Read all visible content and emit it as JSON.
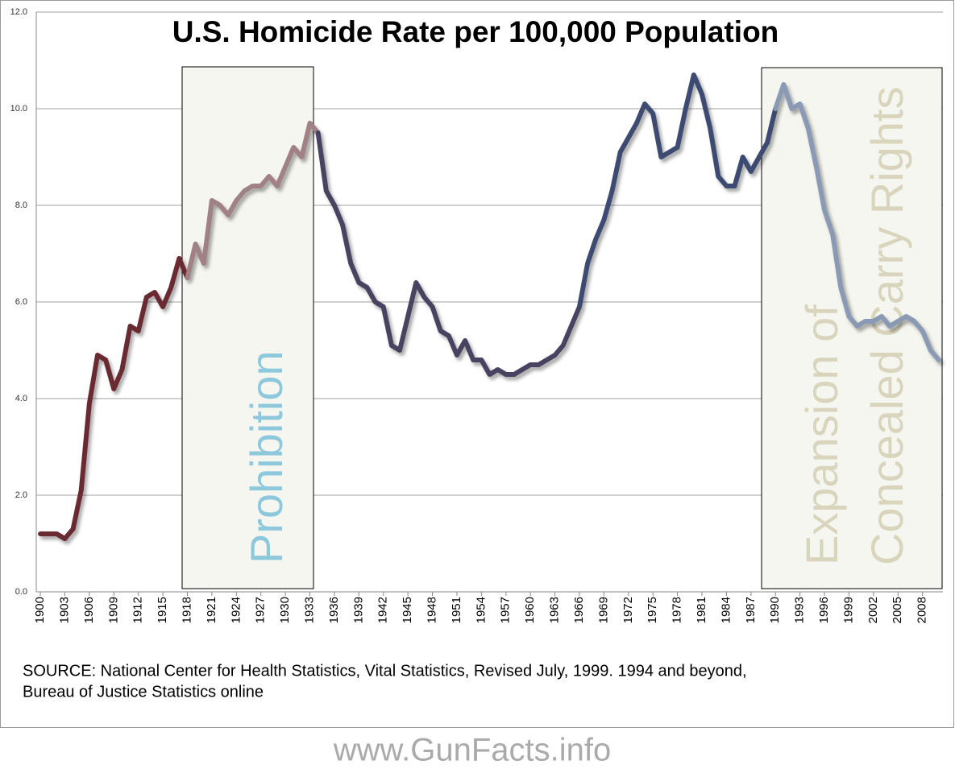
{
  "chart_data": {
    "type": "line",
    "title": "U.S. Homicide Rate per 100,000 Population",
    "source": [
      "SOURCE: National Center for Health Statistics, Vital Statistics, Revised  July, 1999. 1994 and beyond,",
      "Bureau of Justice Statistics online"
    ],
    "footer": "www.GunFacts.info",
    "annotations": [
      {
        "lines": [
          "Prohibition"
        ],
        "color": "#8ec8dc"
      },
      {
        "lines": [
          "Expansion of",
          "Concealed Carry Rights"
        ],
        "color": "#d9d5bd"
      }
    ],
    "xlim": [
      1899.5,
      2010.5
    ],
    "xticks": [
      1900,
      1903,
      1906,
      1909,
      1912,
      1915,
      1918,
      1921,
      1924,
      1927,
      1930,
      1933,
      1936,
      1939,
      1942,
      1945,
      1948,
      1951,
      1954,
      1957,
      1960,
      1963,
      1966,
      1969,
      1972,
      1975,
      1978,
      1981,
      1984,
      1987,
      1990,
      1993,
      1996,
      1999,
      2002,
      2005,
      2008
    ],
    "ylim": [
      0,
      12
    ],
    "yticks": [
      {
        "value": 0,
        "label": "0.0"
      },
      {
        "value": 2,
        "label": "2.0"
      },
      {
        "value": 4,
        "label": "4.0"
      },
      {
        "value": 6,
        "label": "6.0"
      },
      {
        "value": 8,
        "label": "8.0"
      },
      {
        "value": 10,
        "label": "10.0"
      },
      {
        "value": 12,
        "label": "12.0"
      }
    ],
    "grid": true,
    "series": [
      {
        "color": "#6b2a30",
        "x": [
          1900,
          1901,
          1902,
          1903,
          1904,
          1905,
          1906,
          1907,
          1908,
          1909,
          1910,
          1911,
          1912,
          1913,
          1914,
          1915,
          1916,
          1917
        ],
        "values": [
          1.2,
          1.2,
          1.2,
          1.1,
          1.3,
          2.1,
          3.9,
          4.9,
          4.8,
          4.2,
          4.6,
          5.5,
          5.4,
          6.1,
          6.2,
          5.9,
          6.3,
          6.9
        ]
      },
      {
        "color": "#a08286",
        "x": [
          1918,
          1919,
          1920,
          1921,
          1922,
          1923,
          1924,
          1925,
          1926,
          1927,
          1928,
          1929,
          1930,
          1931,
          1932,
          1933
        ],
        "values": [
          6.5,
          7.2,
          6.8,
          8.1,
          8.0,
          7.8,
          8.1,
          8.3,
          8.4,
          8.4,
          8.6,
          8.4,
          8.8,
          9.2,
          9.0,
          9.7
        ]
      },
      {
        "color": "#4a4260",
        "x": [
          1934,
          1935,
          1936,
          1937,
          1938,
          1939,
          1940,
          1941,
          1942,
          1943,
          1944,
          1945,
          1946,
          1947,
          1948,
          1949,
          1950,
          1951,
          1952,
          1953,
          1954,
          1955,
          1956,
          1957,
          1958,
          1959,
          1960,
          1961,
          1962,
          1963,
          1964,
          1965
        ],
        "values": [
          9.5,
          8.3,
          8.0,
          7.6,
          6.8,
          6.4,
          6.3,
          6.0,
          5.9,
          5.1,
          5.0,
          5.7,
          6.4,
          6.1,
          5.9,
          5.4,
          5.3,
          4.9,
          5.2,
          4.8,
          4.8,
          4.5,
          4.6,
          4.5,
          4.5,
          4.6,
          4.7,
          4.7,
          4.8,
          4.9,
          5.1,
          5.5
        ]
      },
      {
        "color": "#3d4b72",
        "x": [
          1966,
          1967,
          1968,
          1969,
          1970,
          1971,
          1972,
          1973,
          1974,
          1975,
          1976,
          1977,
          1978,
          1979,
          1980,
          1981,
          1982,
          1983,
          1984,
          1985,
          1986,
          1987,
          1988,
          1989
        ],
        "values": [
          5.9,
          6.8,
          7.3,
          7.7,
          8.3,
          9.1,
          9.4,
          9.7,
          10.1,
          9.9,
          9.0,
          9.1,
          9.2,
          10.0,
          10.7,
          10.3,
          9.6,
          8.6,
          8.4,
          8.4,
          9.0,
          8.7,
          9.0,
          9.3
        ]
      },
      {
        "color": "#8a9ab4",
        "x": [
          1990,
          1991,
          1992,
          1993,
          1994,
          1995,
          1996,
          1997,
          1998,
          1999,
          2000,
          2001,
          2002,
          2003,
          2004,
          2005,
          2006,
          2007,
          2008,
          2009,
          2010
        ],
        "values": [
          10.0,
          10.5,
          10.0,
          10.1,
          9.6,
          8.8,
          7.9,
          7.4,
          6.3,
          5.7,
          5.5,
          5.6,
          5.6,
          5.7,
          5.5,
          5.6,
          5.7,
          5.6,
          5.4,
          5.0,
          4.8
        ]
      }
    ]
  }
}
